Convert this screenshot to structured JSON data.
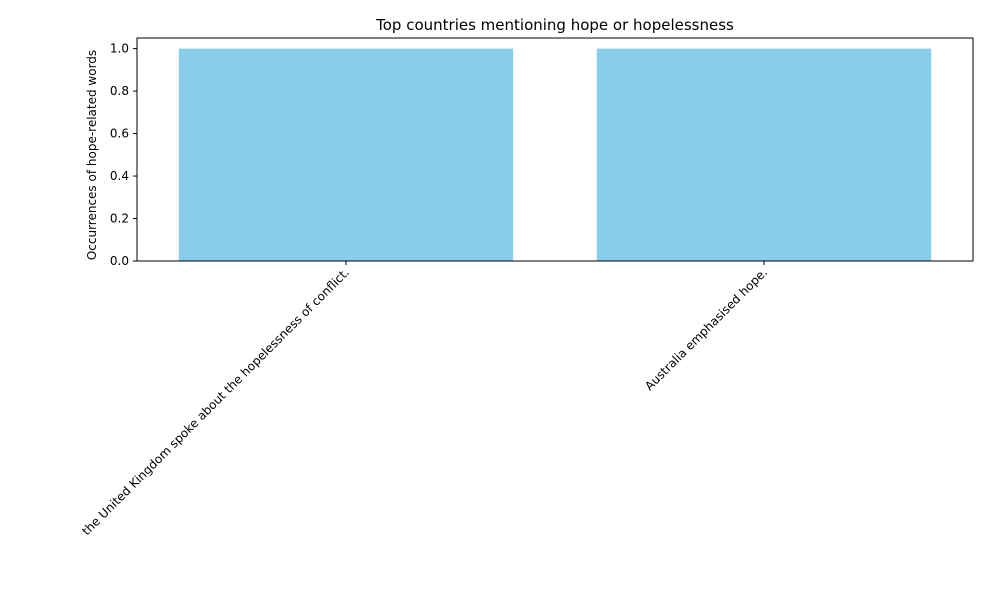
{
  "chart_data": {
    "type": "bar",
    "title": "Top countries mentioning hope or hopelessness",
    "xlabel": "",
    "ylabel": "Occurrences of hope-related words",
    "categories": [
      "the United Kingdom spoke about the hopelessness of conflict.",
      "Australia emphasised hope."
    ],
    "values": [
      1,
      1
    ],
    "ylim": [
      0,
      1.05
    ],
    "yticks": [
      "0.0",
      "0.2",
      "0.4",
      "0.6",
      "0.8",
      "1.0"
    ],
    "bar_color": "#87CEEB",
    "grid": false
  }
}
